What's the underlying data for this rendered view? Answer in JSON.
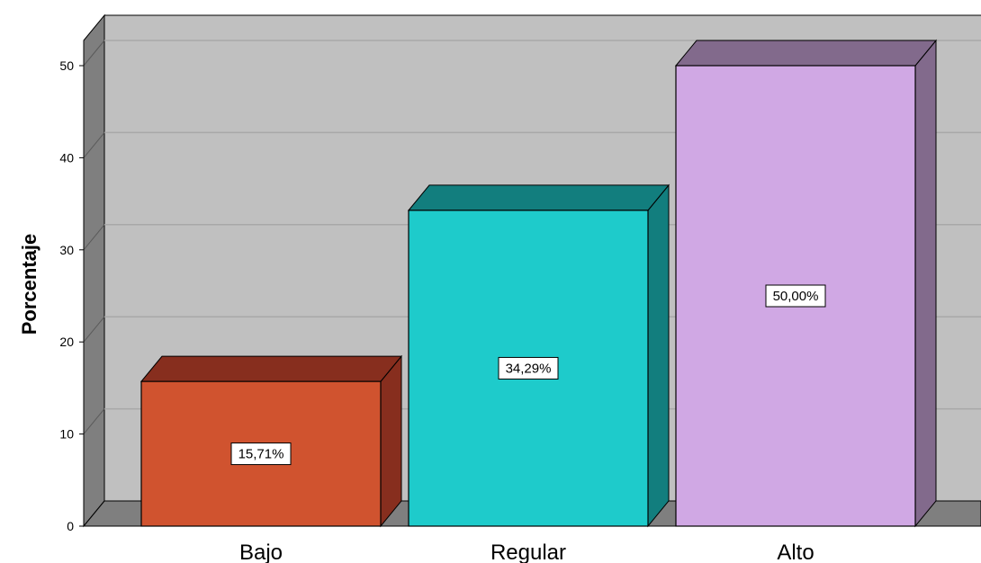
{
  "chart_data": {
    "type": "bar",
    "categories": [
      "Bajo",
      "Regular",
      "Alto"
    ],
    "values": [
      15.71,
      34.29,
      50.0
    ],
    "data_labels": [
      "15,71%",
      "34,29%",
      "50,00%"
    ],
    "ylabel": "Porcentaje",
    "xlabel": "",
    "ylim": [
      0,
      50
    ],
    "yticks": [
      0,
      10,
      20,
      30,
      40,
      50
    ],
    "grid": true,
    "style": "3d",
    "colors": {
      "bars": [
        "#D0532F",
        "#1ECBCB",
        "#D0A8E4"
      ],
      "bar_sides": [
        "#872E1E",
        "#127E7E",
        "#826A8C"
      ],
      "wall": "#C0C0C0",
      "left_wall": "#7F7F7F",
      "floor": "#7F7F7F",
      "grid": "#A8A8A8"
    }
  }
}
